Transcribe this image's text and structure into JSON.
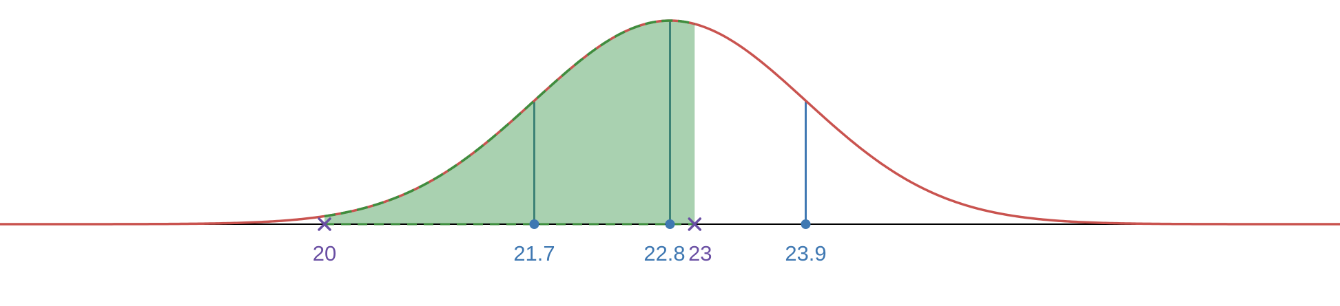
{
  "chart_data": {
    "type": "area",
    "title": "",
    "xlabel": "",
    "ylabel": "",
    "distribution": {
      "kind": "normal",
      "mean": 22.8,
      "sd": 1.1
    },
    "xlim": [
      17.37,
      28.23
    ],
    "shaded_interval": [
      20,
      23
    ],
    "markers": [
      {
        "x": 20,
        "label": "20",
        "shape": "cross",
        "color": "#6a4fa3"
      },
      {
        "x": 21.7,
        "label": "21.7",
        "shape": "dot",
        "color": "#3f78b2"
      },
      {
        "x": 22.8,
        "label": "22.8",
        "shape": "dot",
        "color": "#3f78b2"
      },
      {
        "x": 23,
        "label": "23",
        "shape": "cross",
        "color": "#6a4fa3"
      },
      {
        "x": 23.9,
        "label": "23.9",
        "shape": "dot",
        "color": "#3f78b2"
      }
    ],
    "vertical_lines": [
      21.7,
      22.8,
      23.9
    ],
    "colors": {
      "curve": "#c9534f",
      "fill": "#a9d1b0",
      "fill_edge": "#3e8e3e",
      "drop_line_inside": "#3c8275",
      "drop_line_outside": "#3f78b2",
      "axis": "#000000"
    },
    "grid": false,
    "legend": "none"
  }
}
